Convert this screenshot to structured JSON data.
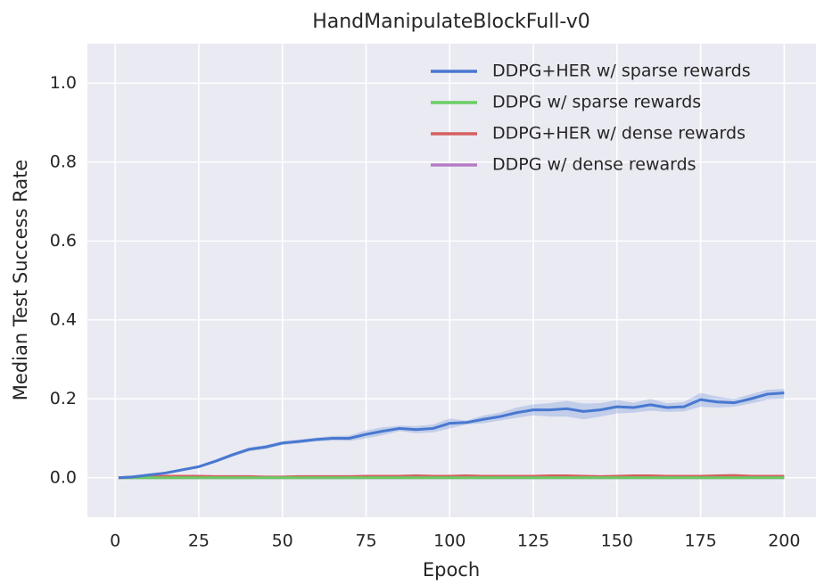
{
  "chart_data": {
    "type": "line",
    "title": "HandManipulateBlockFull-v0",
    "xlabel": "Epoch",
    "ylabel": "Median Test Success Rate",
    "x": [
      1,
      5,
      10,
      15,
      20,
      25,
      30,
      35,
      40,
      45,
      50,
      55,
      60,
      65,
      70,
      75,
      80,
      85,
      90,
      95,
      100,
      105,
      110,
      115,
      120,
      125,
      130,
      135,
      140,
      145,
      150,
      155,
      160,
      165,
      170,
      175,
      180,
      185,
      190,
      195,
      200
    ],
    "series": [
      {
        "name": "DDPG+HER w/ sparse rewards",
        "color": "#4878d0",
        "values": [
          0,
          0.002,
          0.007,
          0.012,
          0.02,
          0.028,
          0.042,
          0.058,
          0.072,
          0.078,
          0.088,
          0.092,
          0.097,
          0.1,
          0.1,
          0.11,
          0.118,
          0.125,
          0.122,
          0.125,
          0.138,
          0.14,
          0.148,
          0.155,
          0.165,
          0.172,
          0.172,
          0.175,
          0.168,
          0.172,
          0.18,
          0.178,
          0.185,
          0.178,
          0.18,
          0.198,
          0.192,
          0.19,
          0.2,
          0.212,
          0.215
        ],
        "lower": [
          0,
          0.001,
          0.005,
          0.01,
          0.017,
          0.025,
          0.038,
          0.053,
          0.067,
          0.073,
          0.083,
          0.087,
          0.092,
          0.094,
          0.093,
          0.1,
          0.108,
          0.118,
          0.113,
          0.115,
          0.125,
          0.135,
          0.138,
          0.145,
          0.152,
          0.158,
          0.155,
          0.155,
          0.148,
          0.155,
          0.163,
          0.165,
          0.17,
          0.167,
          0.168,
          0.18,
          0.178,
          0.18,
          0.188,
          0.198,
          0.2
        ],
        "upper": [
          0,
          0.003,
          0.009,
          0.014,
          0.023,
          0.031,
          0.046,
          0.062,
          0.077,
          0.083,
          0.093,
          0.097,
          0.102,
          0.106,
          0.107,
          0.12,
          0.128,
          0.132,
          0.131,
          0.135,
          0.15,
          0.145,
          0.158,
          0.165,
          0.178,
          0.186,
          0.189,
          0.195,
          0.188,
          0.189,
          0.197,
          0.19,
          0.2,
          0.189,
          0.192,
          0.215,
          0.206,
          0.2,
          0.212,
          0.223,
          0.225
        ]
      },
      {
        "name": "DDPG w/ sparse rewards",
        "color": "#6acc64",
        "values": [
          0,
          0,
          0,
          0,
          0,
          0,
          0,
          0,
          0,
          0,
          0,
          0,
          0,
          0,
          0,
          0,
          0,
          0,
          0,
          0,
          0,
          0,
          0,
          0,
          0,
          0,
          0,
          0,
          0,
          0,
          0,
          0,
          0,
          0,
          0,
          0,
          0,
          0,
          0,
          0,
          0
        ]
      },
      {
        "name": "DDPG+HER w/ dense rewards",
        "color": "#d65f5f",
        "values": [
          0,
          0.002,
          0.003,
          0.004,
          0.004,
          0.004,
          0.003,
          0.003,
          0.003,
          0.002,
          0.002,
          0.003,
          0.003,
          0.003,
          0.003,
          0.004,
          0.004,
          0.004,
          0.005,
          0.004,
          0.004,
          0.005,
          0.004,
          0.004,
          0.004,
          0.004,
          0.005,
          0.005,
          0.004,
          0.003,
          0.004,
          0.005,
          0.005,
          0.004,
          0.004,
          0.004,
          0.005,
          0.006,
          0.004,
          0.004,
          0.004
        ]
      },
      {
        "name": "DDPG w/ dense rewards",
        "color": "#b47cc7",
        "values": [
          0,
          0,
          0,
          0,
          0,
          0,
          0,
          0,
          0,
          0,
          0,
          0,
          0,
          0,
          0,
          0,
          0,
          0,
          0,
          0,
          0,
          0,
          0,
          0,
          0,
          0,
          0,
          0,
          0,
          0,
          0,
          0,
          0,
          0,
          0,
          0,
          0,
          0,
          0,
          0,
          0
        ]
      }
    ],
    "xlim": [
      -8.3,
      209.5
    ],
    "xticks": [
      0,
      25,
      50,
      75,
      100,
      125,
      150,
      175,
      200
    ],
    "ylim": [
      -0.1,
      1.1
    ],
    "yticks": [
      {
        "value": 0,
        "label": "0.0"
      },
      {
        "value": 0.2,
        "label": "0.2"
      },
      {
        "value": 0.4,
        "label": "0.4"
      },
      {
        "value": 0.6,
        "label": "0.6"
      },
      {
        "value": 0.8,
        "label": "0.8"
      },
      {
        "value": 1,
        "label": "1.0"
      }
    ],
    "grid": true,
    "legend": "upper right"
  }
}
